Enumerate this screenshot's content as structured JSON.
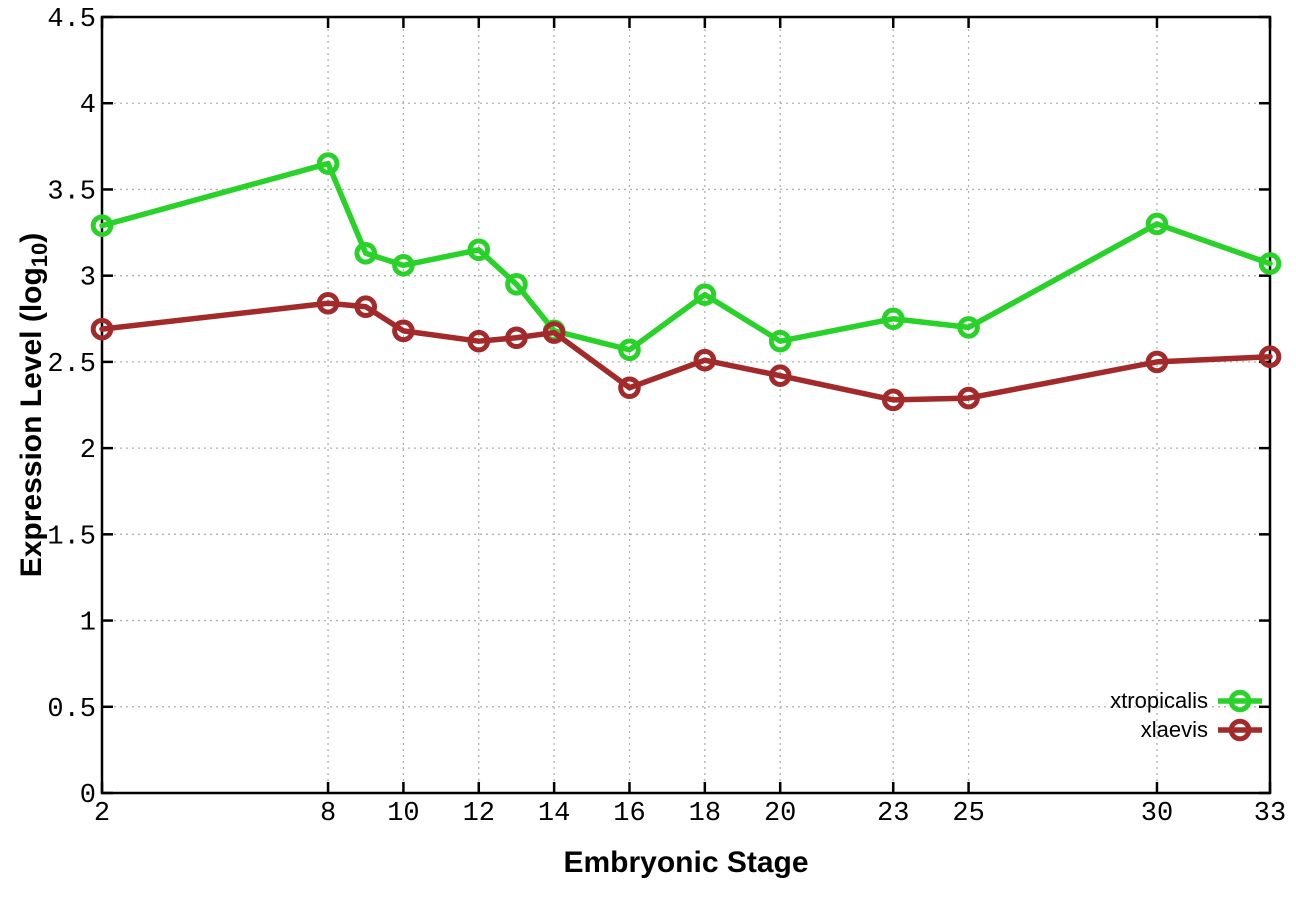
{
  "chart_data": {
    "type": "line",
    "title": "",
    "xlabel": "Embryonic Stage",
    "ylabel_parts": {
      "pre": "Expression Level (log",
      "sub": "10",
      "post": ")"
    },
    "xlim": [
      2,
      33
    ],
    "ylim": [
      0,
      4.5
    ],
    "x_ticks": [
      2,
      8,
      10,
      12,
      14,
      16,
      18,
      20,
      23,
      25,
      30,
      33
    ],
    "x_tick_labels": [
      "2",
      "8",
      "10",
      "12",
      "14",
      "16",
      "18",
      "20",
      "23",
      "25",
      "30",
      "33"
    ],
    "y_ticks": [
      0,
      0.5,
      1,
      1.5,
      2,
      2.5,
      3,
      3.5,
      4,
      4.5
    ],
    "y_tick_labels": [
      "0",
      "0.5",
      "1",
      "1.5",
      "2",
      "2.5",
      "3",
      "3.5",
      "4",
      "4.5"
    ],
    "grid": true,
    "legend_position": "bottom-right",
    "x": [
      2,
      8,
      9,
      10,
      12,
      13,
      14,
      16,
      18,
      20,
      23,
      25,
      30,
      33
    ],
    "series": [
      {
        "name": "xtropicalis",
        "color": "#28d228",
        "values": [
          3.29,
          3.65,
          3.13,
          3.06,
          3.15,
          2.95,
          2.68,
          2.57,
          2.89,
          2.62,
          2.75,
          2.7,
          3.3,
          3.07
        ]
      },
      {
        "name": "xlaevis",
        "color": "#a32a2a",
        "values": [
          2.69,
          2.84,
          2.82,
          2.68,
          2.62,
          2.64,
          2.67,
          2.35,
          2.51,
          2.42,
          2.28,
          2.29,
          2.5,
          2.53
        ]
      }
    ],
    "colors": {
      "axis": "#000000",
      "grid": "#b0b0b0",
      "background": "#ffffff"
    }
  }
}
